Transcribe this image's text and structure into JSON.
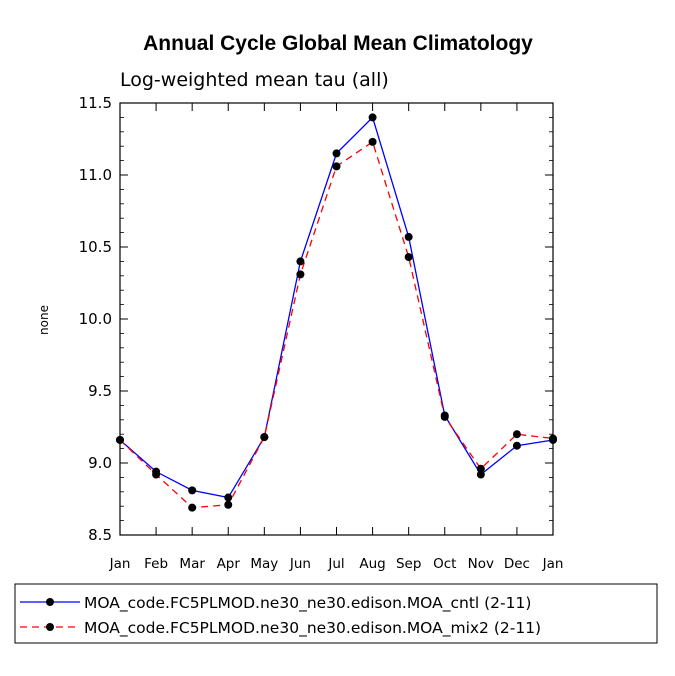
{
  "chart_data": {
    "type": "line",
    "title": "Annual Cycle Global Mean Climatology",
    "subtitle": "Log-weighted mean tau (all)",
    "xlabel": "",
    "ylabel": "none",
    "categories": [
      "Jan",
      "Feb",
      "Mar",
      "Apr",
      "May",
      "Jun",
      "Jul",
      "Aug",
      "Sep",
      "Oct",
      "Nov",
      "Dec",
      "Jan"
    ],
    "ylim": [
      8.5,
      11.5
    ],
    "yticks": [
      "8.5",
      "9.0",
      "9.5",
      "10.0",
      "10.5",
      "11.0",
      "11.5"
    ],
    "series": [
      {
        "name": "MOA_code.FC5PLMOD.ne30_ne30.edison.MOA_cntl (2-11)",
        "color": "#0000ff",
        "dash": "solid",
        "values": [
          9.16,
          8.94,
          8.81,
          8.76,
          9.18,
          10.4,
          11.15,
          11.4,
          10.57,
          9.33,
          8.92,
          9.12,
          9.16
        ]
      },
      {
        "name": "MOA_code.FC5PLMOD.ne30_ne30.edison.MOA_mix2 (2-11)",
        "color": "#ff0000",
        "dash": "dashed",
        "values": [
          9.16,
          8.92,
          8.69,
          8.71,
          9.18,
          10.31,
          11.06,
          11.23,
          10.43,
          9.32,
          8.96,
          9.2,
          9.17
        ]
      }
    ],
    "marker_color": "#000000",
    "legend_position": "bottom"
  }
}
